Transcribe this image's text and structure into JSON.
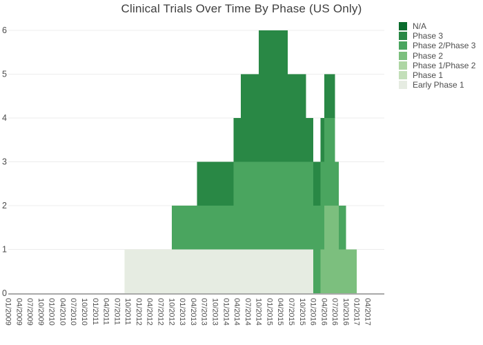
{
  "title": "Clinical Trials Over Time By Phase (US Only)",
  "colors": {
    "N/A": "#0a6b2c",
    "Phase 3": "#298845",
    "Phase 2/Phase 3": "#4aa55f",
    "Phase 2": "#7cbf7e",
    "Phase 1/Phase 2": "#aed6a4",
    "Phase 1": "#c3dfb9",
    "Early Phase 1": "#e6ece2",
    "grid": "#ececec",
    "axis_line": "#a8a8a8",
    "tick_text": "#4c4c4c",
    "title_text": "#3d3d3d"
  },
  "legend": {
    "entries": [
      "N/A",
      "Phase 3",
      "Phase 2/Phase 3",
      "Phase 2",
      "Phase 1/Phase 2",
      "Phase 1",
      "Early Phase 1"
    ],
    "position": "right-top"
  },
  "chart_data": {
    "type": "area",
    "subtype": "stacked step area (hv), monthly resolution",
    "title": "Clinical Trials Over Time By Phase (US Only)",
    "xlabel": "",
    "ylabel": "",
    "ylim": [
      0,
      6
    ],
    "y_ticks": [
      "0",
      "1",
      "2",
      "3",
      "4",
      "5",
      "6"
    ],
    "x_range": [
      "01/2009",
      "07/2017"
    ],
    "x_tick_labels": [
      "01/2009",
      "04/2009",
      "07/2009",
      "10/2009",
      "01/2010",
      "04/2010",
      "07/2010",
      "10/2010",
      "01/2011",
      "04/2011",
      "07/2011",
      "10/2011",
      "01/2012",
      "04/2012",
      "07/2012",
      "10/2012",
      "01/2013",
      "04/2013",
      "07/2013",
      "10/2013",
      "01/2014",
      "04/2014",
      "07/2014",
      "10/2014",
      "01/2015",
      "04/2015",
      "07/2015",
      "10/2015",
      "01/2016",
      "04/2016",
      "07/2016",
      "10/2016",
      "01/2017",
      "04/2017"
    ],
    "grid": "horizontal-only",
    "legend_position": "right-top",
    "stack_order_bottom_to_top": [
      "Early Phase 1",
      "Phase 1",
      "Phase 1/Phase 2",
      "Phase 2",
      "Phase 2/Phase 3",
      "Phase 3",
      "N/A"
    ],
    "series": [
      {
        "name": "Early Phase 1",
        "steps": [
          [
            "09/2011",
            1
          ],
          [
            "01/2016",
            0
          ]
        ]
      },
      {
        "name": "Phase 1",
        "steps": []
      },
      {
        "name": "Phase 1/Phase 2",
        "steps": []
      },
      {
        "name": "Phase 2",
        "steps": [
          [
            "03/2016",
            1
          ],
          [
            "04/2016",
            2
          ],
          [
            "08/2016",
            1
          ],
          [
            "01/2017",
            0
          ]
        ]
      },
      {
        "name": "Phase 2/Phase 3",
        "steps": [
          [
            "10/2012",
            1
          ],
          [
            "03/2014",
            2
          ],
          [
            "07/2016",
            1
          ],
          [
            "10/2016",
            0
          ]
        ]
      },
      {
        "name": "Phase 3",
        "steps": [
          [
            "05/2013",
            1
          ],
          [
            "05/2014",
            2
          ],
          [
            "10/2014",
            3
          ],
          [
            "06/2015",
            2
          ],
          [
            "11/2015",
            1
          ],
          [
            "07/2016",
            0
          ]
        ]
      },
      {
        "name": "N/A",
        "steps": []
      }
    ]
  }
}
